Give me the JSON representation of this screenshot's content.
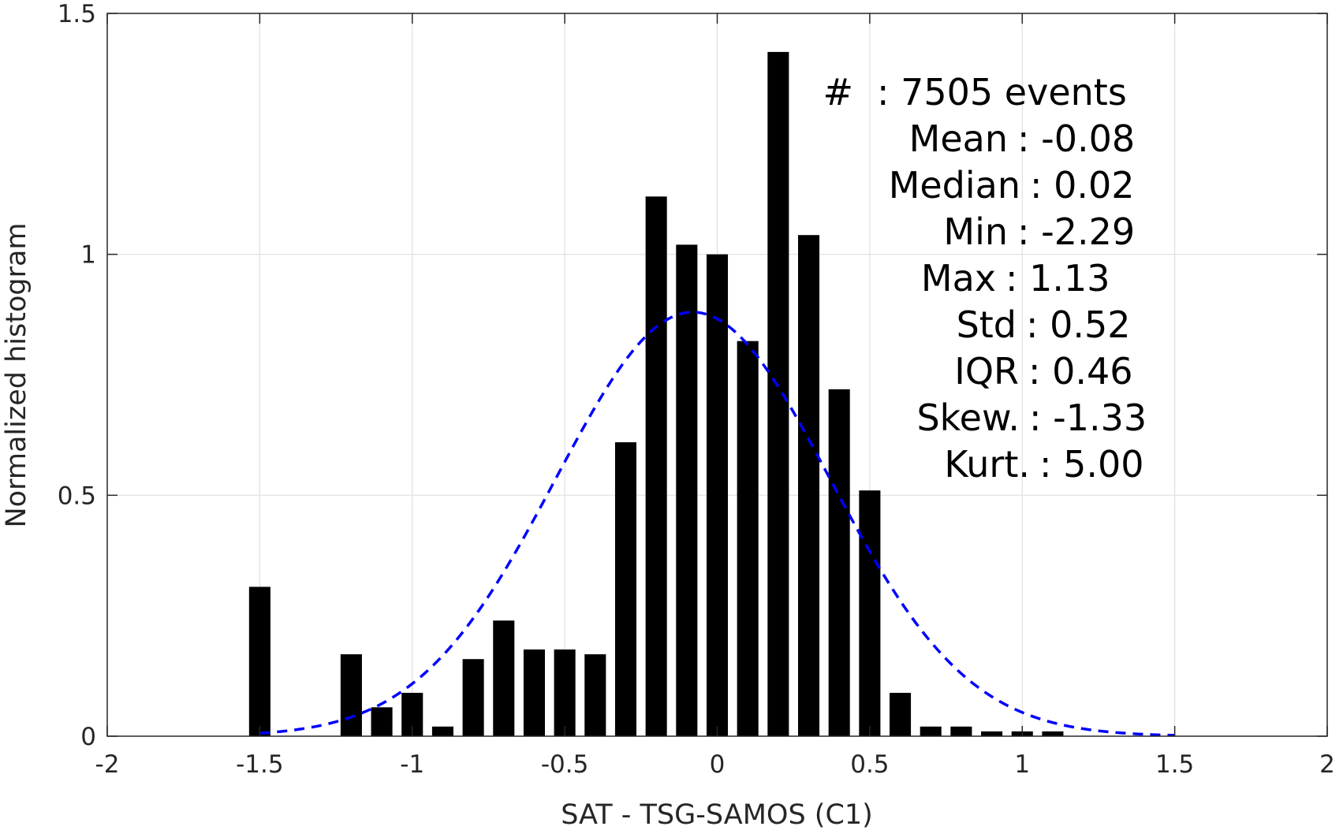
{
  "chart_data": {
    "type": "bar",
    "xlabel": "SAT - TSG-SAMOS (C1)",
    "ylabel": "Normalized histogram",
    "xlim": [
      -2,
      2
    ],
    "ylim": [
      0,
      1.5
    ],
    "xticks": [
      -2,
      -1.5,
      -1,
      -0.5,
      0,
      0.5,
      1,
      1.5,
      2
    ],
    "xtick_labels": [
      "-2",
      "-1.5",
      "-1",
      "-0.5",
      "0",
      "0.5",
      "1",
      "1.5",
      "2"
    ],
    "yticks": [
      0,
      0.5,
      1,
      1.5
    ],
    "ytick_labels": [
      "0",
      "0.5",
      "1",
      "1.5"
    ],
    "grid": true,
    "bar_color": "#000000",
    "bins": [
      -1.5,
      -1.2,
      -1.1,
      -1.0,
      -0.9,
      -0.8,
      -0.7,
      -0.6,
      -0.5,
      -0.4,
      -0.3,
      -0.2,
      -0.1,
      0.0,
      0.1,
      0.2,
      0.3,
      0.4,
      0.5,
      0.6,
      0.7,
      0.8,
      0.9,
      1.0,
      1.1
    ],
    "values": [
      0.31,
      0.17,
      0.06,
      0.09,
      0.02,
      0.16,
      0.24,
      0.18,
      0.18,
      0.17,
      0.61,
      1.12,
      1.02,
      1.0,
      0.82,
      1.42,
      1.04,
      0.72,
      0.51,
      0.09,
      0.02,
      0.02,
      0.01,
      0.01,
      0.01
    ],
    "fit_curve": {
      "style": "dashed",
      "color": "#0000ff",
      "mean": -0.08,
      "std": 0.45,
      "peak": 0.88,
      "x_range": [
        -1.5,
        1.5
      ]
    },
    "stats": [
      {
        "label": "#",
        "value": ": 7505 events"
      },
      {
        "label": "Mean",
        "value": ": -0.08"
      },
      {
        "label": "Median",
        "value": ": 0.02"
      },
      {
        "label": "Min",
        "value": ": -2.29"
      },
      {
        "label": "Max",
        "value": ": 1.13"
      },
      {
        "label": "Std",
        "value": ": 0.52"
      },
      {
        "label": "IQR",
        "value": ": 0.46"
      },
      {
        "label": "Skew.",
        "value": ": -1.33"
      },
      {
        "label": "Kurt.",
        "value": ": 5.00"
      }
    ]
  }
}
